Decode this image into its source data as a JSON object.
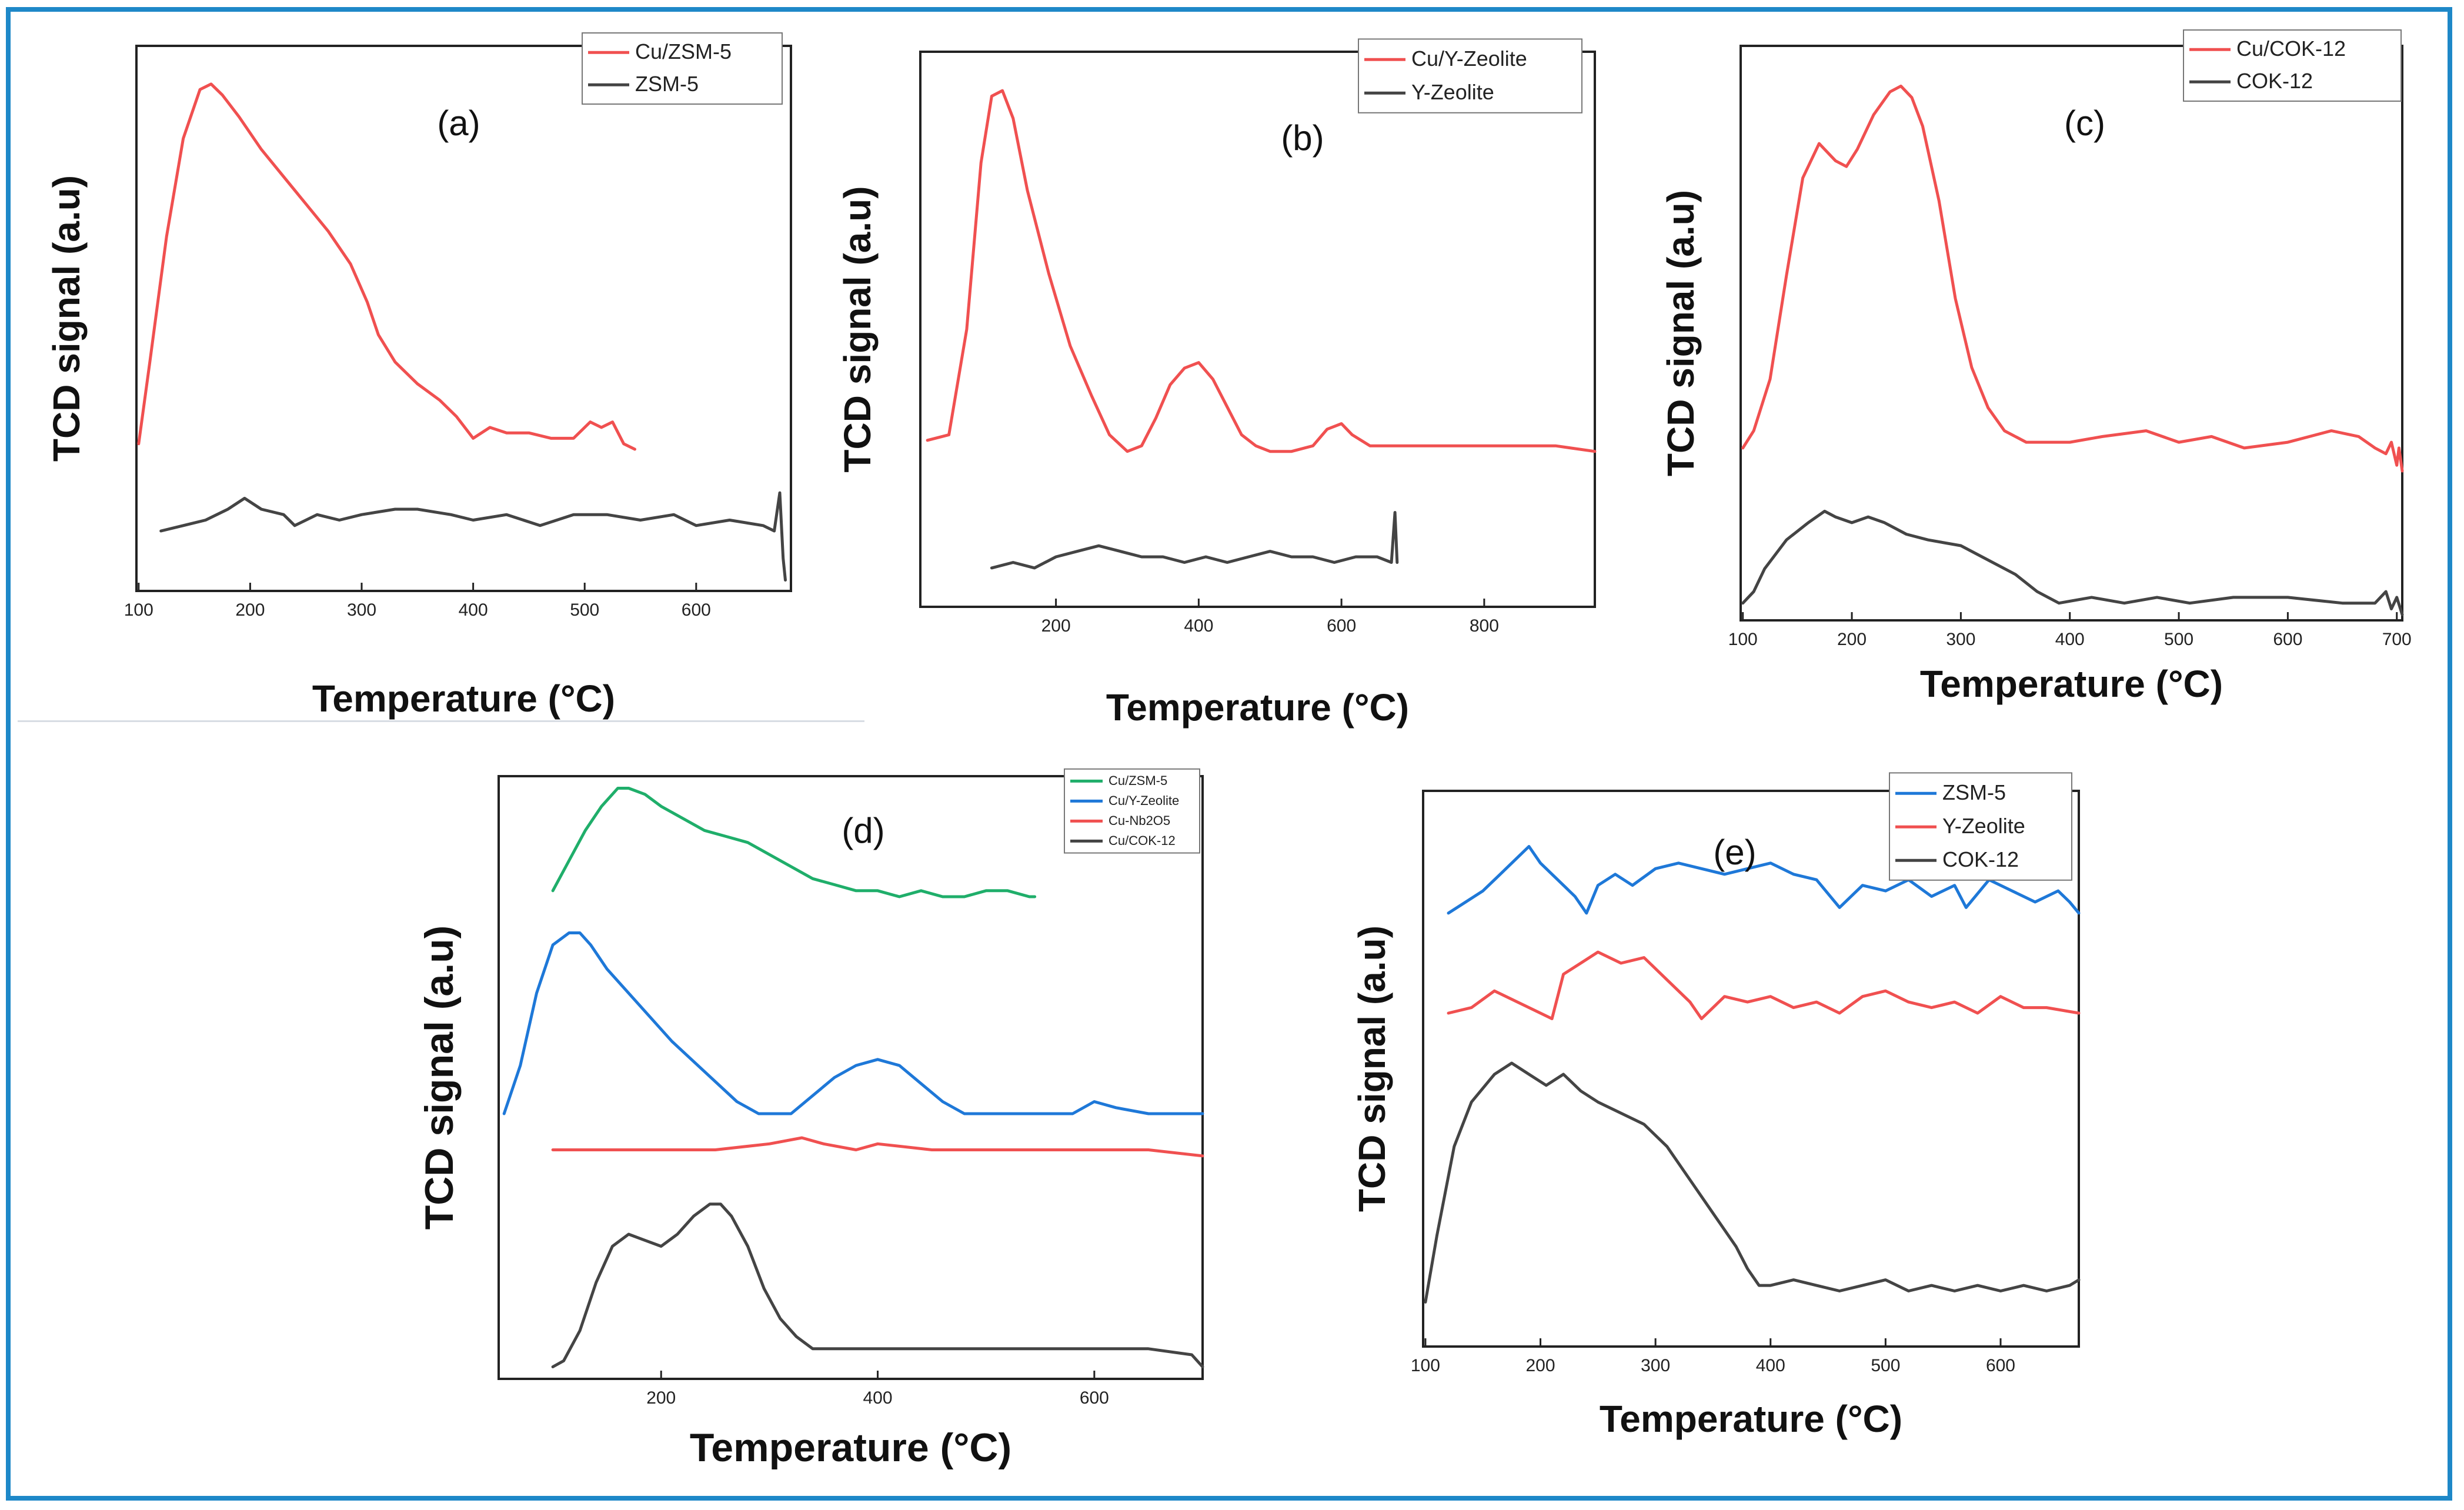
{
  "figure": {
    "border_color": "#1e88c8"
  },
  "chart_data": [
    {
      "id": "a",
      "type": "line",
      "label": "(a)",
      "xlabel": "Temperature (°C)",
      "ylabel": "TCD signal (a.u)",
      "xlim": [
        98,
        685
      ],
      "ylim": [
        0,
        1
      ],
      "xticks": [
        100,
        200,
        300,
        400,
        500,
        600
      ],
      "tick_labels": [
        "100",
        "200",
        "300",
        "400",
        "500",
        "600"
      ],
      "legend": [
        "Cu/ZSM-5",
        "ZSM-5"
      ],
      "series": [
        {
          "name": "Cu/ZSM-5",
          "color": "#f05050",
          "x": [
            100,
            110,
            125,
            140,
            155,
            165,
            175,
            190,
            210,
            230,
            250,
            270,
            290,
            305,
            315,
            330,
            350,
            370,
            385,
            400,
            415,
            430,
            450,
            470,
            490,
            505,
            515,
            525,
            535,
            545
          ],
          "y": [
            0.27,
            0.42,
            0.65,
            0.83,
            0.92,
            0.93,
            0.91,
            0.87,
            0.81,
            0.76,
            0.71,
            0.66,
            0.6,
            0.53,
            0.47,
            0.42,
            0.38,
            0.35,
            0.32,
            0.28,
            0.3,
            0.29,
            0.29,
            0.28,
            0.28,
            0.31,
            0.3,
            0.31,
            0.27,
            0.26
          ]
        },
        {
          "name": "ZSM-5",
          "color": "#444444",
          "x": [
            120,
            140,
            160,
            180,
            195,
            210,
            230,
            240,
            260,
            280,
            300,
            330,
            350,
            380,
            400,
            430,
            460,
            490,
            520,
            550,
            580,
            600,
            630,
            660,
            670,
            675,
            678,
            680
          ],
          "y": [
            0.11,
            0.12,
            0.13,
            0.15,
            0.17,
            0.15,
            0.14,
            0.12,
            0.14,
            0.13,
            0.14,
            0.15,
            0.15,
            0.14,
            0.13,
            0.14,
            0.12,
            0.14,
            0.14,
            0.13,
            0.14,
            0.12,
            0.13,
            0.12,
            0.11,
            0.18,
            0.06,
            0.02
          ]
        }
      ]
    },
    {
      "id": "b",
      "type": "line",
      "label": "(b)",
      "xlabel": "Temperature (°C)",
      "ylabel": "TCD signal (a.u)",
      "xlim": [
        10,
        955
      ],
      "ylim": [
        0,
        1
      ],
      "xticks": [
        200,
        400,
        600,
        800
      ],
      "tick_labels": [
        "200",
        "400",
        "600",
        "800"
      ],
      "legend": [
        "Cu/Y-Zeolite",
        "Y-Zeolite"
      ],
      "series": [
        {
          "name": "Cu/Y-Zeolite",
          "color": "#f05050",
          "x": [
            20,
            50,
            75,
            95,
            110,
            125,
            140,
            160,
            190,
            220,
            250,
            275,
            300,
            320,
            340,
            360,
            380,
            400,
            420,
            440,
            460,
            480,
            500,
            530,
            560,
            580,
            600,
            615,
            640,
            700,
            800,
            900,
            955
          ],
          "y": [
            0.3,
            0.31,
            0.5,
            0.8,
            0.92,
            0.93,
            0.88,
            0.75,
            0.6,
            0.47,
            0.38,
            0.31,
            0.28,
            0.29,
            0.34,
            0.4,
            0.43,
            0.44,
            0.41,
            0.36,
            0.31,
            0.29,
            0.28,
            0.28,
            0.29,
            0.32,
            0.33,
            0.31,
            0.29,
            0.29,
            0.29,
            0.29,
            0.28
          ]
        },
        {
          "name": "Y-Zeolite",
          "color": "#444444",
          "x": [
            110,
            140,
            170,
            200,
            230,
            260,
            290,
            320,
            350,
            380,
            410,
            440,
            470,
            500,
            530,
            560,
            590,
            620,
            650,
            670,
            675,
            678
          ],
          "y": [
            0.07,
            0.08,
            0.07,
            0.09,
            0.1,
            0.11,
            0.1,
            0.09,
            0.09,
            0.08,
            0.09,
            0.08,
            0.09,
            0.1,
            0.09,
            0.09,
            0.08,
            0.09,
            0.09,
            0.08,
            0.17,
            0.08
          ]
        }
      ]
    },
    {
      "id": "c",
      "type": "line",
      "label": "(c)",
      "xlabel": "Temperature (°C)",
      "ylabel": "TCD signal (a.u)",
      "xlim": [
        98,
        705
      ],
      "ylim": [
        0,
        1
      ],
      "xticks": [
        100,
        200,
        300,
        400,
        500,
        600,
        700
      ],
      "tick_labels": [
        "100",
        "200",
        "300",
        "400",
        "500",
        "600",
        "700"
      ],
      "legend": [
        "Cu/COK-12",
        "COK-12"
      ],
      "series": [
        {
          "name": "Cu/COK-12",
          "color": "#f05050",
          "x": [
            100,
            110,
            125,
            140,
            155,
            170,
            185,
            195,
            205,
            220,
            235,
            245,
            255,
            265,
            280,
            295,
            310,
            325,
            340,
            360,
            380,
            400,
            430,
            470,
            500,
            530,
            560,
            600,
            640,
            665,
            680,
            690,
            695,
            700,
            702,
            705
          ],
          "y": [
            0.3,
            0.33,
            0.42,
            0.6,
            0.77,
            0.83,
            0.8,
            0.79,
            0.82,
            0.88,
            0.92,
            0.93,
            0.91,
            0.86,
            0.73,
            0.56,
            0.44,
            0.37,
            0.33,
            0.31,
            0.31,
            0.31,
            0.32,
            0.33,
            0.31,
            0.32,
            0.3,
            0.31,
            0.33,
            0.32,
            0.3,
            0.29,
            0.31,
            0.27,
            0.3,
            0.26
          ]
        },
        {
          "name": "COK-12",
          "color": "#444444",
          "x": [
            100,
            110,
            120,
            140,
            160,
            175,
            185,
            200,
            215,
            230,
            250,
            270,
            300,
            320,
            350,
            370,
            390,
            420,
            450,
            480,
            510,
            550,
            600,
            650,
            680,
            690,
            695,
            700,
            705
          ],
          "y": [
            0.03,
            0.05,
            0.09,
            0.14,
            0.17,
            0.19,
            0.18,
            0.17,
            0.18,
            0.17,
            0.15,
            0.14,
            0.13,
            0.11,
            0.08,
            0.05,
            0.03,
            0.04,
            0.03,
            0.04,
            0.03,
            0.04,
            0.04,
            0.03,
            0.03,
            0.05,
            0.02,
            0.04,
            0.01
          ]
        }
      ]
    },
    {
      "id": "d",
      "type": "line",
      "label": "(d)",
      "xlabel": "Temperature (°C)",
      "ylabel": "TCD signal (a.u)",
      "xlim": [
        50,
        700
      ],
      "ylim": [
        0,
        1
      ],
      "xticks": [
        200,
        400,
        600
      ],
      "tick_labels": [
        "200",
        "400",
        "600"
      ],
      "legend": [
        "Cu/ZSM-5",
        "Cu/Y-Zeolite",
        "Cu-Nb2O5",
        "Cu/COK-12"
      ],
      "series": [
        {
          "name": "Cu/ZSM-5",
          "color": "#1fae6a",
          "x": [
            100,
            115,
            130,
            145,
            160,
            170,
            185,
            200,
            220,
            240,
            260,
            280,
            300,
            320,
            340,
            360,
            380,
            400,
            420,
            440,
            460,
            480,
            500,
            520,
            540,
            545
          ],
          "y": [
            0.81,
            0.86,
            0.91,
            0.95,
            0.98,
            0.98,
            0.97,
            0.95,
            0.93,
            0.91,
            0.9,
            0.89,
            0.87,
            0.85,
            0.83,
            0.82,
            0.81,
            0.81,
            0.8,
            0.81,
            0.8,
            0.8,
            0.81,
            0.81,
            0.8,
            0.8
          ]
        },
        {
          "name": "Cu/Y-Zeolite",
          "color": "#1e78d8",
          "x": [
            55,
            70,
            85,
            100,
            115,
            125,
            135,
            150,
            180,
            210,
            240,
            270,
            290,
            300,
            320,
            340,
            360,
            380,
            400,
            420,
            440,
            460,
            480,
            500,
            540,
            580,
            600,
            620,
            650,
            700
          ],
          "y": [
            0.44,
            0.52,
            0.64,
            0.72,
            0.74,
            0.74,
            0.72,
            0.68,
            0.62,
            0.56,
            0.51,
            0.46,
            0.44,
            0.44,
            0.44,
            0.47,
            0.5,
            0.52,
            0.53,
            0.52,
            0.49,
            0.46,
            0.44,
            0.44,
            0.44,
            0.44,
            0.46,
            0.45,
            0.44,
            0.44
          ]
        },
        {
          "name": "Cu-Nb2O5",
          "color": "#f05050",
          "x": [
            100,
            150,
            200,
            250,
            300,
            330,
            350,
            380,
            400,
            450,
            500,
            550,
            600,
            650,
            700
          ],
          "y": [
            0.38,
            0.38,
            0.38,
            0.38,
            0.39,
            0.4,
            0.39,
            0.38,
            0.39,
            0.38,
            0.38,
            0.38,
            0.38,
            0.38,
            0.37
          ]
        },
        {
          "name": "Cu/COK-12",
          "color": "#444444",
          "x": [
            100,
            110,
            125,
            140,
            155,
            170,
            185,
            200,
            215,
            230,
            245,
            255,
            265,
            280,
            295,
            310,
            325,
            340,
            360,
            380,
            400,
            450,
            500,
            550,
            600,
            650,
            690,
            700
          ],
          "y": [
            0.02,
            0.03,
            0.08,
            0.16,
            0.22,
            0.24,
            0.23,
            0.22,
            0.24,
            0.27,
            0.29,
            0.29,
            0.27,
            0.22,
            0.15,
            0.1,
            0.07,
            0.05,
            0.05,
            0.05,
            0.05,
            0.05,
            0.05,
            0.05,
            0.05,
            0.05,
            0.04,
            0.02
          ]
        }
      ]
    },
    {
      "id": "e",
      "type": "line",
      "label": "(e)",
      "xlabel": "Temperature (°C)",
      "ylabel": "TCD signal (a.u)",
      "xlim": [
        98,
        668
      ],
      "ylim": [
        0,
        1
      ],
      "xticks": [
        100,
        200,
        300,
        400,
        500,
        600
      ],
      "tick_labels": [
        "100",
        "200",
        "300",
        "400",
        "500",
        "600"
      ],
      "legend": [
        "ZSM-5",
        "Y-Zeolite",
        "COK-12"
      ],
      "series": [
        {
          "name": "ZSM-5",
          "color": "#1e78d8",
          "x": [
            120,
            135,
            150,
            165,
            180,
            190,
            200,
            215,
            230,
            240,
            250,
            265,
            280,
            300,
            320,
            340,
            360,
            380,
            400,
            420,
            440,
            460,
            480,
            500,
            520,
            540,
            560,
            570,
            590,
            610,
            630,
            650,
            660,
            668
          ],
          "y": [
            0.78,
            0.8,
            0.82,
            0.85,
            0.88,
            0.9,
            0.87,
            0.84,
            0.81,
            0.78,
            0.83,
            0.85,
            0.83,
            0.86,
            0.87,
            0.86,
            0.85,
            0.86,
            0.87,
            0.85,
            0.84,
            0.79,
            0.83,
            0.82,
            0.84,
            0.81,
            0.83,
            0.79,
            0.84,
            0.82,
            0.8,
            0.82,
            0.8,
            0.78
          ]
        },
        {
          "name": "Y-Zeolite",
          "color": "#f05050",
          "x": [
            120,
            140,
            160,
            180,
            200,
            210,
            220,
            235,
            250,
            270,
            290,
            310,
            330,
            340,
            360,
            380,
            400,
            420,
            440,
            460,
            480,
            500,
            520,
            540,
            560,
            580,
            600,
            620,
            640,
            668
          ],
          "y": [
            0.6,
            0.61,
            0.64,
            0.62,
            0.6,
            0.59,
            0.67,
            0.69,
            0.71,
            0.69,
            0.7,
            0.66,
            0.62,
            0.59,
            0.63,
            0.62,
            0.63,
            0.61,
            0.62,
            0.6,
            0.63,
            0.64,
            0.62,
            0.61,
            0.62,
            0.6,
            0.63,
            0.61,
            0.61,
            0.6
          ]
        },
        {
          "name": "COK-12",
          "color": "#444444",
          "x": [
            100,
            110,
            125,
            140,
            160,
            175,
            190,
            205,
            220,
            235,
            250,
            270,
            290,
            310,
            330,
            350,
            370,
            380,
            390,
            400,
            420,
            440,
            460,
            480,
            500,
            520,
            540,
            560,
            580,
            600,
            620,
            640,
            660,
            668
          ],
          "y": [
            0.08,
            0.2,
            0.36,
            0.44,
            0.49,
            0.51,
            0.49,
            0.47,
            0.49,
            0.46,
            0.44,
            0.42,
            0.4,
            0.36,
            0.3,
            0.24,
            0.18,
            0.14,
            0.11,
            0.11,
            0.12,
            0.11,
            0.1,
            0.11,
            0.12,
            0.1,
            0.11,
            0.1,
            0.11,
            0.1,
            0.11,
            0.1,
            0.11,
            0.12
          ]
        }
      ]
    }
  ]
}
